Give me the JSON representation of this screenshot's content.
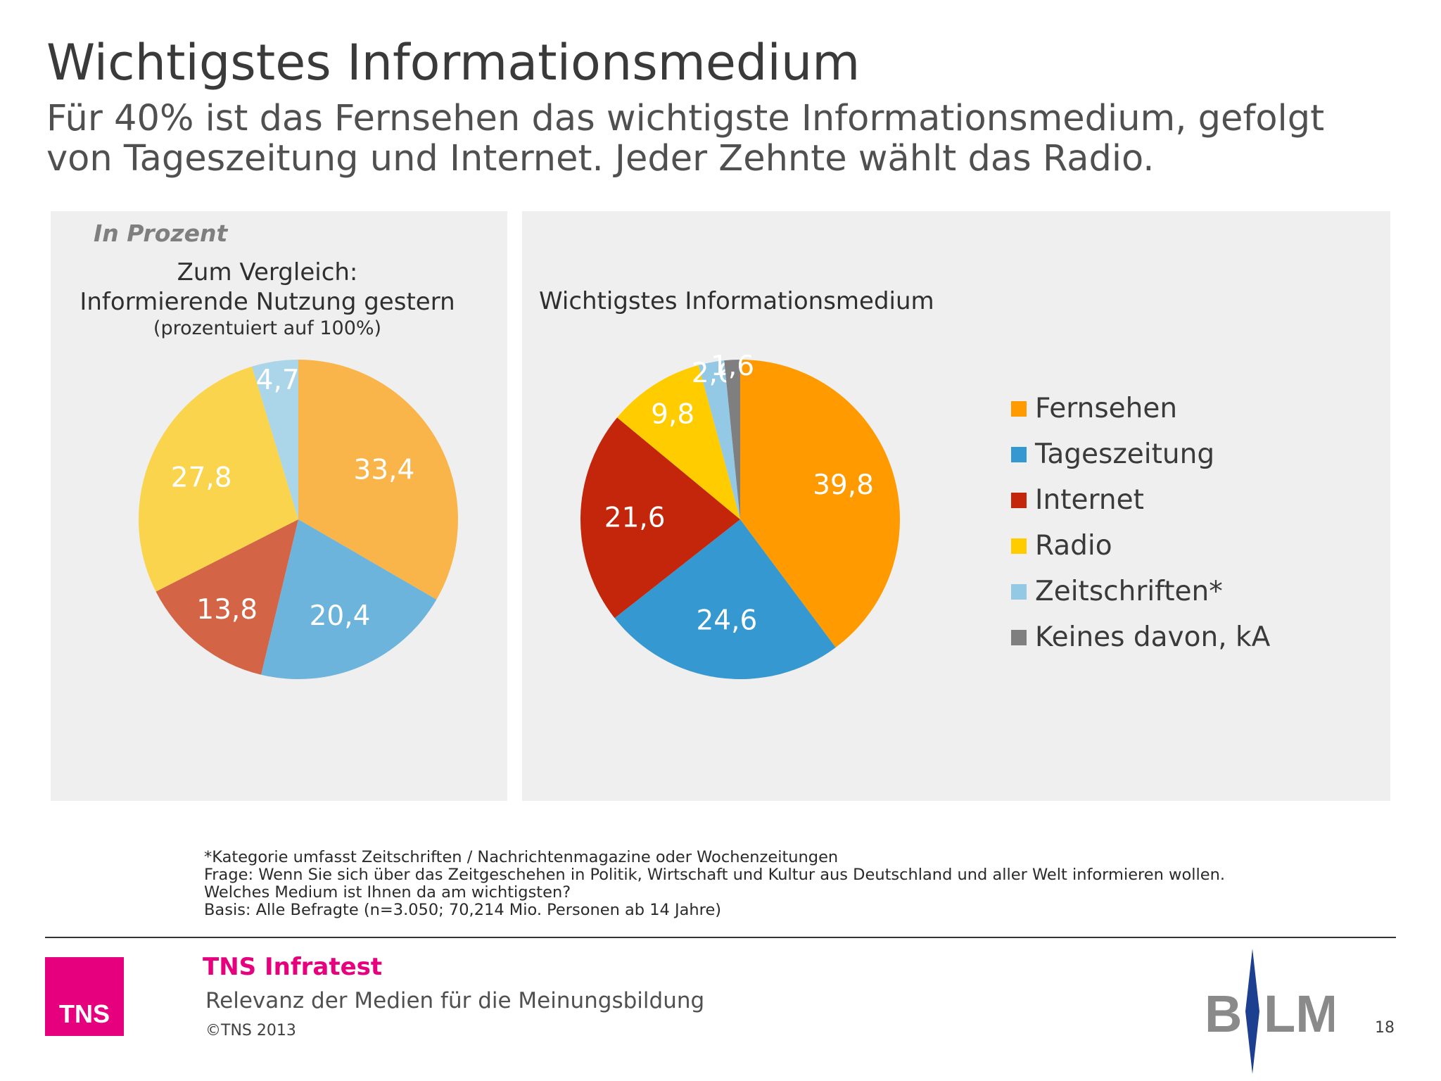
{
  "slide": {
    "title": "Wichtigstes Informationsmedium",
    "subtitle_line1": "Für 40% ist das Fernsehen das wichtigste Informationsmedium, gefolgt",
    "subtitle_line2": "von Tageszeitung und Internet. Jeder Zehnte wählt das Radio."
  },
  "unit_label": "In Prozent",
  "left_panel": {
    "title_line1": "Zum Vergleich:",
    "title_line2": "Informierende Nutzung gestern",
    "title_line3": "(prozentuiert auf 100%)"
  },
  "right_panel": {
    "title": "Wichtigstes Informationsmedium"
  },
  "chart_data": [
    {
      "type": "pie",
      "title": "Zum Vergleich: Informierende Nutzung gestern (prozentuiert auf 100%)",
      "categories": [
        "Fernsehen",
        "Tageszeitung",
        "Internet",
        "Radio",
        "Zeitschriften*"
      ],
      "values": [
        33.4,
        20.4,
        13.8,
        27.8,
        4.7
      ],
      "labels": [
        "33,4",
        "20,4",
        "13,8",
        "27,8",
        "4,7"
      ],
      "colors": [
        "#f9b44a",
        "#6db4dc",
        "#d36446",
        "#f9d44c",
        "#abd5e8"
      ],
      "start": "12 o'clock, clockwise"
    },
    {
      "type": "pie",
      "title": "Wichtigstes Informationsmedium",
      "categories": [
        "Fernsehen",
        "Tageszeitung",
        "Internet",
        "Radio",
        "Zeitschriften*",
        "Keines davon, kA"
      ],
      "values": [
        39.8,
        24.6,
        21.6,
        9.8,
        2.6,
        1.6
      ],
      "labels": [
        "39,8",
        "24,6",
        "21,6",
        "9,8",
        "2,6",
        "1,6"
      ],
      "colors": [
        "#ff9b00",
        "#3598d0",
        "#c3260b",
        "#ffcc00",
        "#93c9e5",
        "#7f7f7f"
      ],
      "start": "12 o'clock, clockwise",
      "legend_position": "right"
    }
  ],
  "legend": [
    {
      "label": "Fernsehen",
      "color": "#ff9b00"
    },
    {
      "label": "Tageszeitung",
      "color": "#3598d0"
    },
    {
      "label": "Internet",
      "color": "#c3260b"
    },
    {
      "label": "Radio",
      "color": "#ffcc00"
    },
    {
      "label": "Zeitschriften*",
      "color": "#93c9e5"
    },
    {
      "label": "Keines davon, kA",
      "color": "#7f7f7f"
    }
  ],
  "footnotes": {
    "line1": "*Kategorie umfasst Zeitschriften / Nachrichtenmagazine oder Wochenzeitungen",
    "line2": "Frage: Wenn Sie sich über das Zeitgeschehen in Politik, Wirtschaft und Kultur aus Deutschland und aller Welt informieren wollen.",
    "line3": "Welches Medium ist Ihnen da am wichtigsten?",
    "line4": "Basis: Alle Befragte (n=3.050; 70,214 Mio. Personen ab 14 Jahre)"
  },
  "footer": {
    "logo_text": "TNS",
    "brand": "TNS Infratest",
    "report_title": "Relevanz der Medien für die Meinungsbildung",
    "copyright": "©TNS 2013",
    "page_number": "18",
    "partner_logo_text": "BLM"
  }
}
